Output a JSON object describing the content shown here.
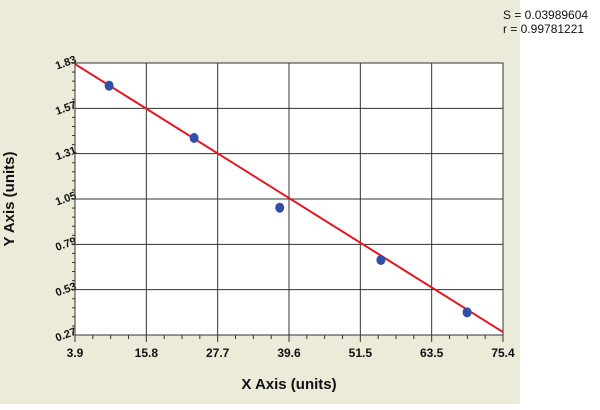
{
  "chart_data": {
    "type": "scatter",
    "title": "",
    "xlabel": "X Axis (units)",
    "ylabel": "Y Axis (units)",
    "xlim": [
      3.9,
      75.4
    ],
    "ylim": [
      0.27,
      1.83
    ],
    "x_ticks": [
      "3.9",
      "15.8",
      "27.7",
      "39.6",
      "51.5",
      "63.5",
      "75.4"
    ],
    "y_ticks": [
      "0.27",
      "0.53",
      "0.79",
      "1.05",
      "1.31",
      "1.57",
      "1.83"
    ],
    "grid": true,
    "points": {
      "x": [
        9.6,
        23.8,
        38.1,
        55.0,
        69.4
      ],
      "y": [
        1.7,
        1.4,
        1.0,
        0.7,
        0.4
      ],
      "color": "#2f4fa8"
    },
    "fit_line": {
      "x": [
        3.9,
        75.4
      ],
      "y": [
        1.824,
        0.287
      ],
      "color": "#e8141c"
    },
    "stats": {
      "s": "S = 0.03989604",
      "r": "r = 0.99781221"
    }
  }
}
